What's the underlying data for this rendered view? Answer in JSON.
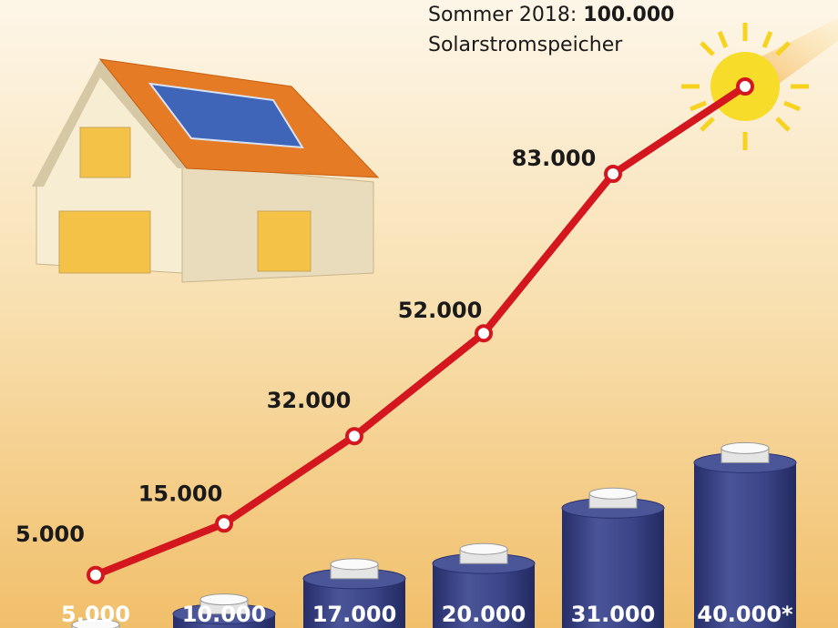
{
  "chart_data": {
    "type": "bar",
    "annotation": {
      "lead": "Sommer 2018:",
      "line2": "Solarstromspeicher"
    },
    "series": [
      {
        "type": "bar",
        "color": "#3a4487",
        "values": [
          5000,
          10000,
          17000,
          20000,
          31000,
          40000
        ],
        "value_labels": [
          "5.000",
          "10.000",
          "17.000",
          "20.000",
          "31.000",
          "40.000*"
        ]
      },
      {
        "type": "line",
        "color": "#d4161e",
        "values": [
          5000,
          15000,
          32000,
          52000,
          83000,
          100000
        ],
        "value_labels": [
          "5.000",
          "15.000",
          "32.000",
          "52.000",
          "83.000",
          "100.000"
        ]
      }
    ]
  }
}
